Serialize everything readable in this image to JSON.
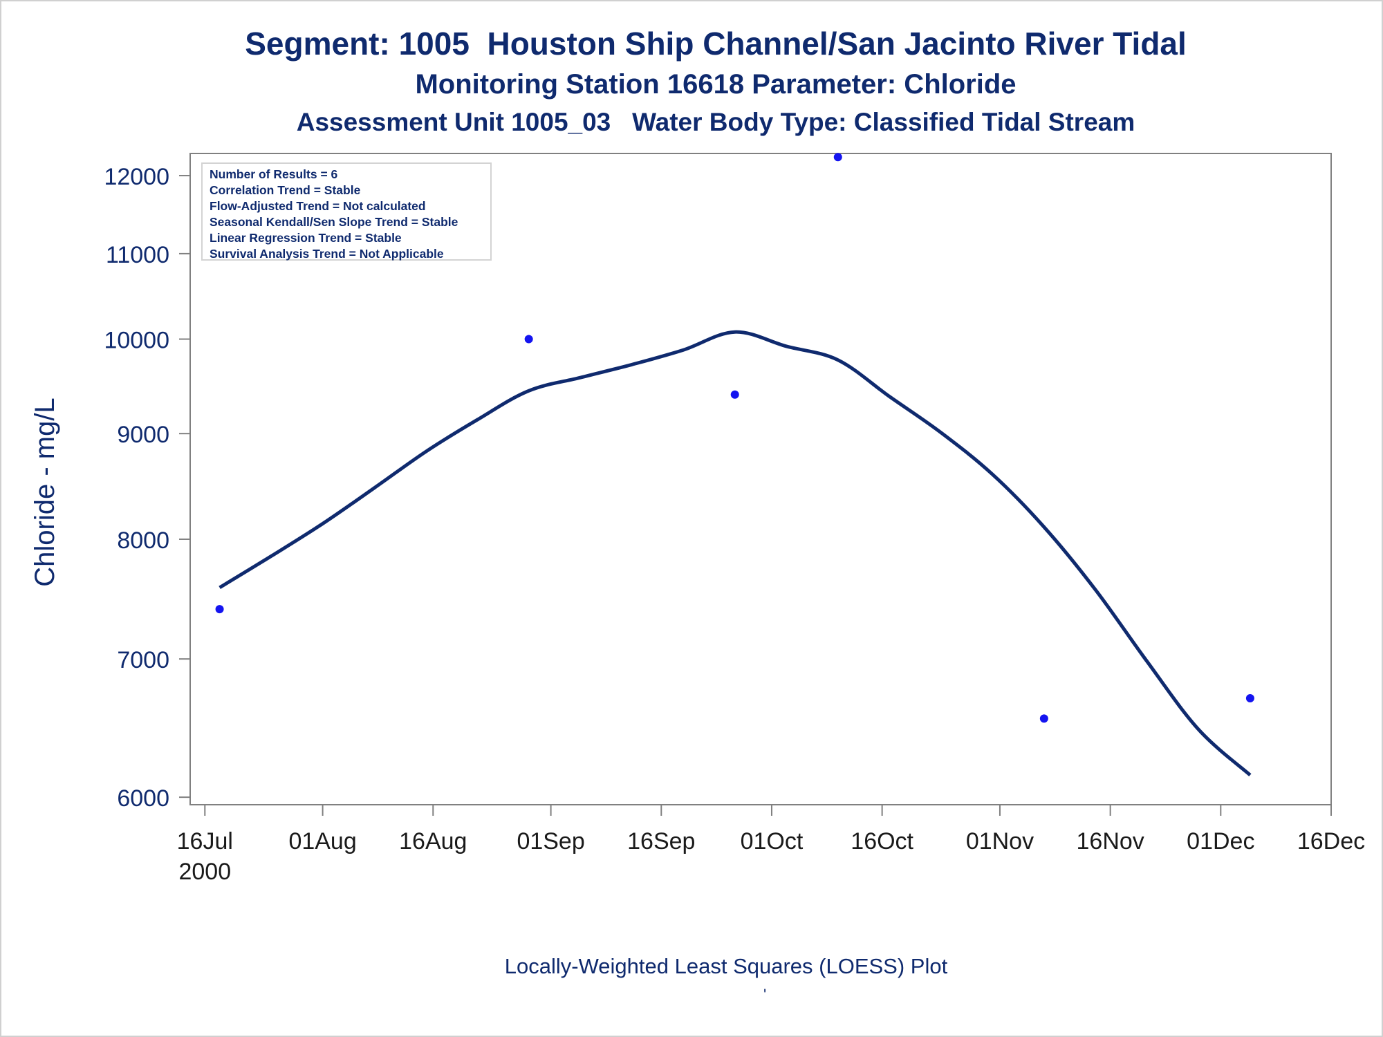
{
  "title": "Segment: 1005  Houston Ship Channel/San Jacinto River Tidal",
  "subtitle": "Monitoring Station 16618 Parameter: Chloride",
  "subtitle2": "Assessment Unit 1005_03   Water Body Type: Classified Tidal Stream",
  "footnote": "Locally-Weighted Least Squares (LOESS) Plot",
  "footnote_mark": "'",
  "stats": [
    "Number of Results = 6",
    "Correlation Trend = Stable",
    "Flow-Adjusted Trend = Not calculated",
    "Seasonal Kendall/Sen Slope Trend = Stable",
    "Linear Regression Trend = Stable",
    "Survival Analysis Trend = Not Applicable"
  ],
  "colors": {
    "text": "#0f2a6e",
    "loess_line": "#0f2a6e",
    "points": "#1414f0",
    "axis": "#808080",
    "stats_border": "#d3d3d3"
  },
  "chart_data": {
    "type": "scatter",
    "ylabel": "Chloride - mg/L",
    "yscale": "log",
    "ylim": [
      5950,
      12300
    ],
    "yticks": [
      6000,
      7000,
      8000,
      9000,
      10000,
      11000,
      12000
    ],
    "ytick_labels": [
      "6000",
      "7000",
      "8000",
      "9000",
      "10000",
      "11000",
      "12000"
    ],
    "xlim": [
      "2000-07-14",
      "2000-12-16"
    ],
    "xticks": [
      "2000-07-16",
      "2000-08-01",
      "2000-08-16",
      "2000-09-01",
      "2000-09-16",
      "2000-10-01",
      "2000-10-16",
      "2000-11-01",
      "2000-11-16",
      "2000-12-01",
      "2000-12-16"
    ],
    "xtick_labels": [
      "16Jul",
      "01Aug",
      "16Aug",
      "01Sep",
      "16Sep",
      "01Oct",
      "16Oct",
      "01Nov",
      "16Nov",
      "01Dec",
      "16Dec"
    ],
    "xtick_sublabels": [
      "2000",
      "",
      "",
      "",
      "",
      "",
      "",
      "",
      "",
      "",
      ""
    ],
    "grid": false,
    "series": [
      {
        "kind": "points",
        "x": [
          "2000-07-18",
          "2000-08-29",
          "2000-09-26",
          "2000-10-10",
          "2000-11-07",
          "2000-12-05"
        ],
        "y": [
          7400,
          10000,
          9400,
          12250,
          6550,
          6700
        ]
      },
      {
        "kind": "loess",
        "x": [
          "2000-07-18",
          "2000-07-25",
          "2000-08-01",
          "2000-08-08",
          "2000-08-15",
          "2000-08-22",
          "2000-08-29",
          "2000-09-05",
          "2000-09-12",
          "2000-09-19",
          "2000-09-26",
          "2000-10-03",
          "2000-10-10",
          "2000-10-17",
          "2000-10-24",
          "2000-10-31",
          "2000-11-07",
          "2000-11-14",
          "2000-11-21",
          "2000-11-28",
          "2000-12-05"
        ],
        "y": [
          7580,
          7850,
          8140,
          8470,
          8820,
          9140,
          9440,
          9580,
          9720,
          9880,
          10080,
          9920,
          9770,
          9380,
          9010,
          8600,
          8110,
          7560,
          6980,
          6470,
          6150
        ]
      }
    ]
  }
}
